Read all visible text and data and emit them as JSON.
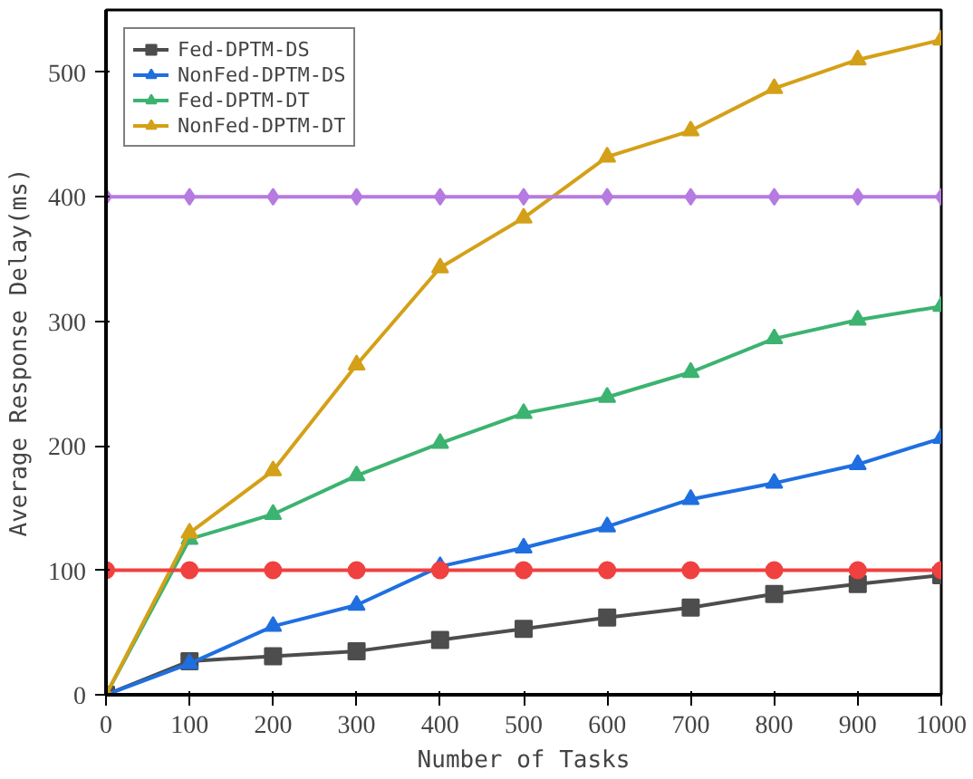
{
  "chart_data": {
    "type": "line",
    "xlabel": "Number of Tasks",
    "ylabel": "Average Response Delay(ms)",
    "x": [
      0,
      100,
      200,
      300,
      400,
      500,
      600,
      700,
      800,
      900,
      1000
    ],
    "xlim": [
      0,
      1000
    ],
    "xticks": [
      0,
      100,
      200,
      300,
      400,
      500,
      600,
      700,
      800,
      900,
      1000
    ],
    "ylim": [
      0,
      550
    ],
    "yticks": [
      0,
      100,
      200,
      300,
      400,
      500
    ],
    "grid": false,
    "legend": "top left",
    "series": [
      {
        "name": "Fed-DPTM-DS",
        "color": "#4d4d4d",
        "marker": "square",
        "values": [
          0,
          27,
          31,
          35,
          44,
          53,
          62,
          70,
          81,
          89,
          96
        ]
      },
      {
        "name": "NonFed-DPTM-DS",
        "color": "#1f6fe0",
        "marker": "triangle",
        "values": [
          0,
          25,
          55,
          72,
          103,
          118,
          135,
          157,
          170,
          185,
          206
        ]
      },
      {
        "name": "Fed-DPTM-DT",
        "color": "#3cb371",
        "marker": "triangle",
        "values": [
          0,
          125,
          145,
          176,
          202,
          226,
          239,
          259,
          286,
          301,
          312
        ]
      },
      {
        "name": "NonFed-DPTM-DT",
        "color": "#d4a017",
        "marker": "triangle",
        "values": [
          0,
          130,
          180,
          265,
          343,
          383,
          432,
          453,
          487,
          510,
          526
        ]
      },
      {
        "color": "#f04040",
        "marker": "circle",
        "values": [
          100,
          100,
          100,
          100,
          100,
          100,
          100,
          100,
          100,
          100,
          100
        ]
      },
      {
        "color": "#b57be0",
        "marker": "diamond",
        "values": [
          400,
          400,
          400,
          400,
          400,
          400,
          400,
          400,
          400,
          400,
          400
        ]
      }
    ]
  }
}
